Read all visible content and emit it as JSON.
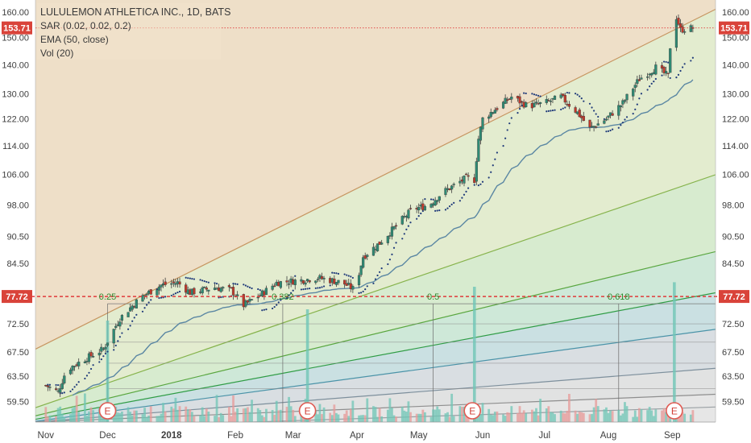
{
  "chart_data": {
    "type": "candlestick",
    "title": "LULULEMON ATHLETICA INC., 1D, BATS",
    "indicators": [
      "SAR (0.02, 0.02, 0.2)",
      "EMA (50, close)",
      "Vol (20)"
    ],
    "x_ticks": [
      {
        "label": "Nov",
        "day": 0
      },
      {
        "label": "Dec",
        "day": 30
      },
      {
        "label": "2018",
        "day": 61
      },
      {
        "label": "Feb",
        "day": 92
      },
      {
        "label": "Mar",
        "day": 120
      },
      {
        "label": "Apr",
        "day": 151
      },
      {
        "label": "May",
        "day": 181
      },
      {
        "label": "Jun",
        "day": 212
      },
      {
        "label": "Jul",
        "day": 242
      },
      {
        "label": "Aug",
        "day": 273
      },
      {
        "label": "Sep",
        "day": 304
      }
    ],
    "xlim": [
      -5,
      325
    ],
    "y_ticks": [
      59.5,
      63.5,
      67.5,
      72.5,
      77.72,
      84.5,
      90.5,
      98.0,
      106.0,
      114.0,
      122.0,
      130.0,
      140.0,
      150.0,
      160.0
    ],
    "y_tick_labels": [
      "59.50",
      "63.50",
      "67.50",
      "72.50",
      "77.72",
      "84.50",
      "90.50",
      "98.00",
      "106.00",
      "114.00",
      "122.00",
      "130.00",
      "140.00",
      "150.00",
      "160.00"
    ],
    "ylim": [
      56.5,
      165
    ],
    "y_scale": "log",
    "last_price": 153.71,
    "last_price_label": "153.71",
    "reference_price": 77.72,
    "reference_price_label": "77.72",
    "close_anchors": [
      {
        "day": 0,
        "close": 62.0
      },
      {
        "day": 6,
        "close": 61.0
      },
      {
        "day": 10,
        "close": 64.5
      },
      {
        "day": 20,
        "close": 66.5
      },
      {
        "day": 28,
        "close": 68.0
      },
      {
        "day": 36,
        "close": 73.5
      },
      {
        "day": 46,
        "close": 77.5
      },
      {
        "day": 56,
        "close": 80.0
      },
      {
        "day": 64,
        "close": 80.5
      },
      {
        "day": 70,
        "close": 78.5
      },
      {
        "day": 82,
        "close": 79.5
      },
      {
        "day": 90,
        "close": 79.0
      },
      {
        "day": 96,
        "close": 76.0
      },
      {
        "day": 104,
        "close": 78.0
      },
      {
        "day": 112,
        "close": 80.5
      },
      {
        "day": 124,
        "close": 81.0
      },
      {
        "day": 132,
        "close": 81.5
      },
      {
        "day": 144,
        "close": 80.5
      },
      {
        "day": 150,
        "close": 79.0
      },
      {
        "day": 154,
        "close": 86.0
      },
      {
        "day": 162,
        "close": 89.0
      },
      {
        "day": 170,
        "close": 93.0
      },
      {
        "day": 178,
        "close": 97.0
      },
      {
        "day": 186,
        "close": 98.0
      },
      {
        "day": 192,
        "close": 101.0
      },
      {
        "day": 198,
        "close": 103.0
      },
      {
        "day": 204,
        "close": 105.0
      },
      {
        "day": 208,
        "close": 104.5
      },
      {
        "day": 210,
        "close": 116.0
      },
      {
        "day": 212,
        "close": 122.0
      },
      {
        "day": 220,
        "close": 126.0
      },
      {
        "day": 226,
        "close": 129.0
      },
      {
        "day": 234,
        "close": 126.0
      },
      {
        "day": 242,
        "close": 127.0
      },
      {
        "day": 250,
        "close": 129.0
      },
      {
        "day": 258,
        "close": 124.0
      },
      {
        "day": 264,
        "close": 119.0
      },
      {
        "day": 272,
        "close": 122.0
      },
      {
        "day": 280,
        "close": 127.0
      },
      {
        "day": 288,
        "close": 135.0
      },
      {
        "day": 296,
        "close": 139.0
      },
      {
        "day": 302,
        "close": 136.0
      },
      {
        "day": 304,
        "close": 157.0
      },
      {
        "day": 306,
        "close": 158.0
      },
      {
        "day": 308,
        "close": 153.0
      },
      {
        "day": 314,
        "close": 153.7
      }
    ],
    "earnings_days": [
      30,
      127,
      207,
      305
    ],
    "earnings_label": "E",
    "volume_spikes": [
      {
        "day": 30,
        "size": 0.45
      },
      {
        "day": 127,
        "size": 0.5
      },
      {
        "day": 208,
        "size": 0.6
      },
      {
        "day": 305,
        "size": 0.62
      }
    ],
    "fib_levels": [
      {
        "label": "0.25",
        "day": 30
      },
      {
        "label": "0.382",
        "day": 115
      },
      {
        "label": "0.5",
        "day": 188
      },
      {
        "label": "0.618",
        "day": 278
      }
    ],
    "fan_lines": [
      {
        "start": [
          -5,
          68.0
        ],
        "end": [
          315,
          157.0
        ],
        "color": "#c79560"
      },
      {
        "start": [
          -5,
          58.6
        ],
        "end": [
          315,
          104.0
        ],
        "color": "#86b34c"
      },
      {
        "start": [
          -5,
          57.4
        ],
        "end": [
          315,
          86.0
        ],
        "color": "#59a63f"
      },
      {
        "start": [
          -5,
          56.9
        ],
        "end": [
          315,
          77.7
        ],
        "color": "#2f9c45"
      },
      {
        "start": [
          -5,
          56.6
        ],
        "end": [
          315,
          71.0
        ],
        "color": "#4a93a8"
      },
      {
        "start": [
          -5,
          56.5
        ],
        "end": [
          315,
          64.5
        ],
        "color": "#7d8f9c"
      },
      {
        "start": [
          -5,
          56.5
        ],
        "end": [
          315,
          60.5
        ],
        "color": "#8e8e8e"
      },
      {
        "start": [
          100,
          56.5
        ],
        "end": [
          315,
          58.6
        ],
        "color": "#9aa0a4"
      }
    ],
    "grid": false,
    "colors": {
      "up": "#2e8b74",
      "down": "#c0392b",
      "ema": "#5b87a3",
      "price_line": "#e03a3a",
      "fib_labels": "#2f8a2f",
      "label_bg": "#d9433a",
      "vol_up": "#6fc5b6",
      "vol_down": "#e79a98"
    }
  }
}
